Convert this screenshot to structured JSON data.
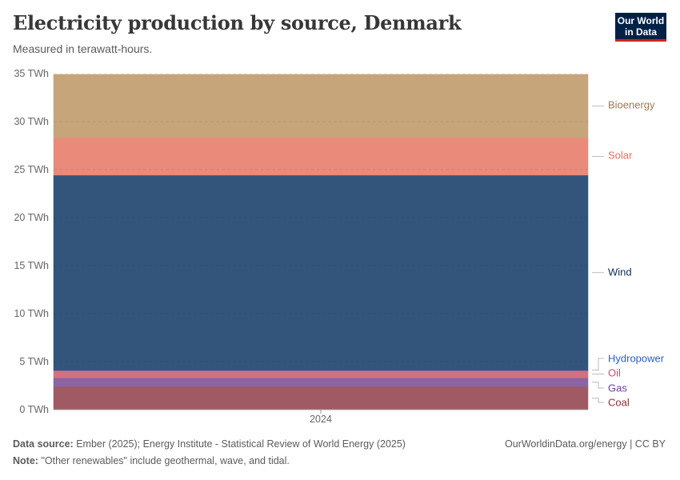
{
  "header": {
    "title": "Electricity production by source, Denmark",
    "subtitle": "Measured in terawatt-hours.",
    "logo": "Our World in Data"
  },
  "footer": {
    "source_label": "Data source:",
    "source": "Ember (2025); Energy Institute - Statistical Review of World Energy (2025)",
    "url": "OurWorldinData.org/energy | CC BY",
    "note_label": "Note:",
    "note": "\"Other renewables\" include geothermal, wave, and tidal."
  },
  "chart_data": {
    "type": "area",
    "stacked": true,
    "x": [
      "2024"
    ],
    "ylim": [
      0,
      35
    ],
    "yticks": [
      0,
      5,
      10,
      15,
      20,
      25,
      30,
      35
    ],
    "ytick_labels": [
      "0 TWh",
      "5 TWh",
      "10 TWh",
      "15 TWh",
      "20 TWh",
      "25 TWh",
      "30 TWh",
      "35 TWh"
    ],
    "xtick_labels": [
      "2024"
    ],
    "grid": "horizontal dashed",
    "legend": "right, inline labels",
    "series": [
      {
        "name": "Coal",
        "values": [
          2.4
        ],
        "color": "#a05a63",
        "label_color": "#883039"
      },
      {
        "name": "Gas",
        "values": [
          0.9
        ],
        "color": "#8a64a4",
        "label_color": "#6d3e91"
      },
      {
        "name": "Oil",
        "values": [
          0.8
        ],
        "color": "#d4707f",
        "label_color": "#c15065"
      },
      {
        "name": "Hydropower",
        "values": [
          0.02
        ],
        "color": "#2c5fba",
        "label_color": "#2c5fba"
      },
      {
        "name": "Wind",
        "values": [
          20.3
        ],
        "color": "#33557b",
        "label_color": "#0f2c57"
      },
      {
        "name": "Solar",
        "values": [
          3.9
        ],
        "color": "#ea8a7a",
        "label_color": "#e56e5a"
      },
      {
        "name": "Bioenergy",
        "values": [
          6.6
        ],
        "color": "#c6a57b",
        "label_color": "#a2794f"
      }
    ]
  }
}
